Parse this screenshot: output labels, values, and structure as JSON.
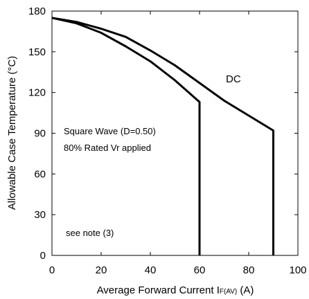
{
  "chart_data": {
    "type": "line",
    "title": "",
    "xlabel": {
      "main": "Average Forward Current I",
      "subscript": "F(AV)",
      "unit": " (A)"
    },
    "ylabel": "Allowable Case Temperature (°C)",
    "xlim": [
      0,
      100
    ],
    "ylim": [
      0,
      180
    ],
    "x_ticks": [
      "0",
      "20",
      "40",
      "60",
      "80",
      "100"
    ],
    "y_ticks": [
      "0",
      "30",
      "60",
      "90",
      "120",
      "150",
      "180"
    ],
    "grid": false,
    "series": [
      {
        "name": "DC",
        "points": [
          [
            0,
            175
          ],
          [
            10,
            172
          ],
          [
            20,
            167
          ],
          [
            30,
            161
          ],
          [
            40,
            151
          ],
          [
            50,
            140
          ],
          [
            60,
            127
          ],
          [
            70,
            114
          ],
          [
            80,
            103
          ],
          [
            90,
            92
          ],
          [
            90,
            0
          ]
        ]
      },
      {
        "name": "Square Wave (D=0.50)",
        "points": [
          [
            0,
            175
          ],
          [
            10,
            171
          ],
          [
            20,
            164
          ],
          [
            30,
            154
          ],
          [
            40,
            143
          ],
          [
            50,
            129
          ],
          [
            60,
            113
          ],
          [
            60,
            0
          ]
        ]
      }
    ],
    "annotations": {
      "square_wave": "Square Wave (D=0.50)",
      "rated": "80% Rated Vr applied",
      "note": "see note (3)"
    },
    "colors": {
      "line": "#000000",
      "background": "#ffffff"
    }
  }
}
